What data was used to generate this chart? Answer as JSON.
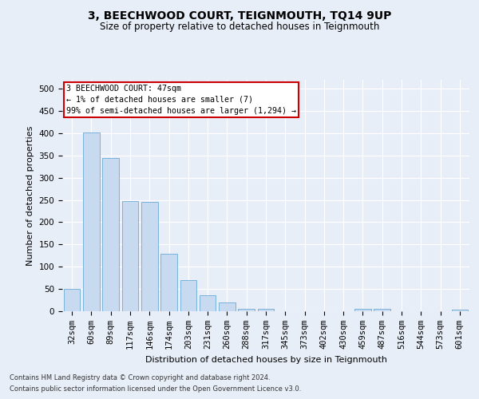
{
  "title": "3, BEECHWOOD COURT, TEIGNMOUTH, TQ14 9UP",
  "subtitle": "Size of property relative to detached houses in Teignmouth",
  "xlabel": "Distribution of detached houses by size in Teignmouth",
  "ylabel": "Number of detached properties",
  "categories": [
    "32sqm",
    "60sqm",
    "89sqm",
    "117sqm",
    "146sqm",
    "174sqm",
    "203sqm",
    "231sqm",
    "260sqm",
    "288sqm",
    "317sqm",
    "345sqm",
    "373sqm",
    "402sqm",
    "430sqm",
    "459sqm",
    "487sqm",
    "516sqm",
    "544sqm",
    "573sqm",
    "601sqm"
  ],
  "values": [
    51,
    401,
    345,
    248,
    246,
    130,
    70,
    35,
    20,
    6,
    5,
    0,
    0,
    0,
    0,
    6,
    6,
    0,
    0,
    0,
    4
  ],
  "bar_color": "#c8daf0",
  "bar_edge_color": "#6aaad4",
  "annotation_text": "3 BEECHWOOD COURT: 47sqm\n← 1% of detached houses are smaller (7)\n99% of semi-detached houses are larger (1,294) →",
  "annotation_box_color": "#ffffff",
  "annotation_box_edge_color": "#cc0000",
  "ylim": [
    0,
    520
  ],
  "yticks": [
    0,
    50,
    100,
    150,
    200,
    250,
    300,
    350,
    400,
    450,
    500
  ],
  "background_color": "#e8eef8",
  "plot_background_color": "#e8eef8",
  "grid_color": "#ffffff",
  "title_fontsize": 10,
  "subtitle_fontsize": 8.5,
  "xlabel_fontsize": 8,
  "ylabel_fontsize": 8,
  "tick_fontsize": 7.5,
  "footer_line1": "Contains HM Land Registry data © Crown copyright and database right 2024.",
  "footer_line2": "Contains public sector information licensed under the Open Government Licence v3.0."
}
